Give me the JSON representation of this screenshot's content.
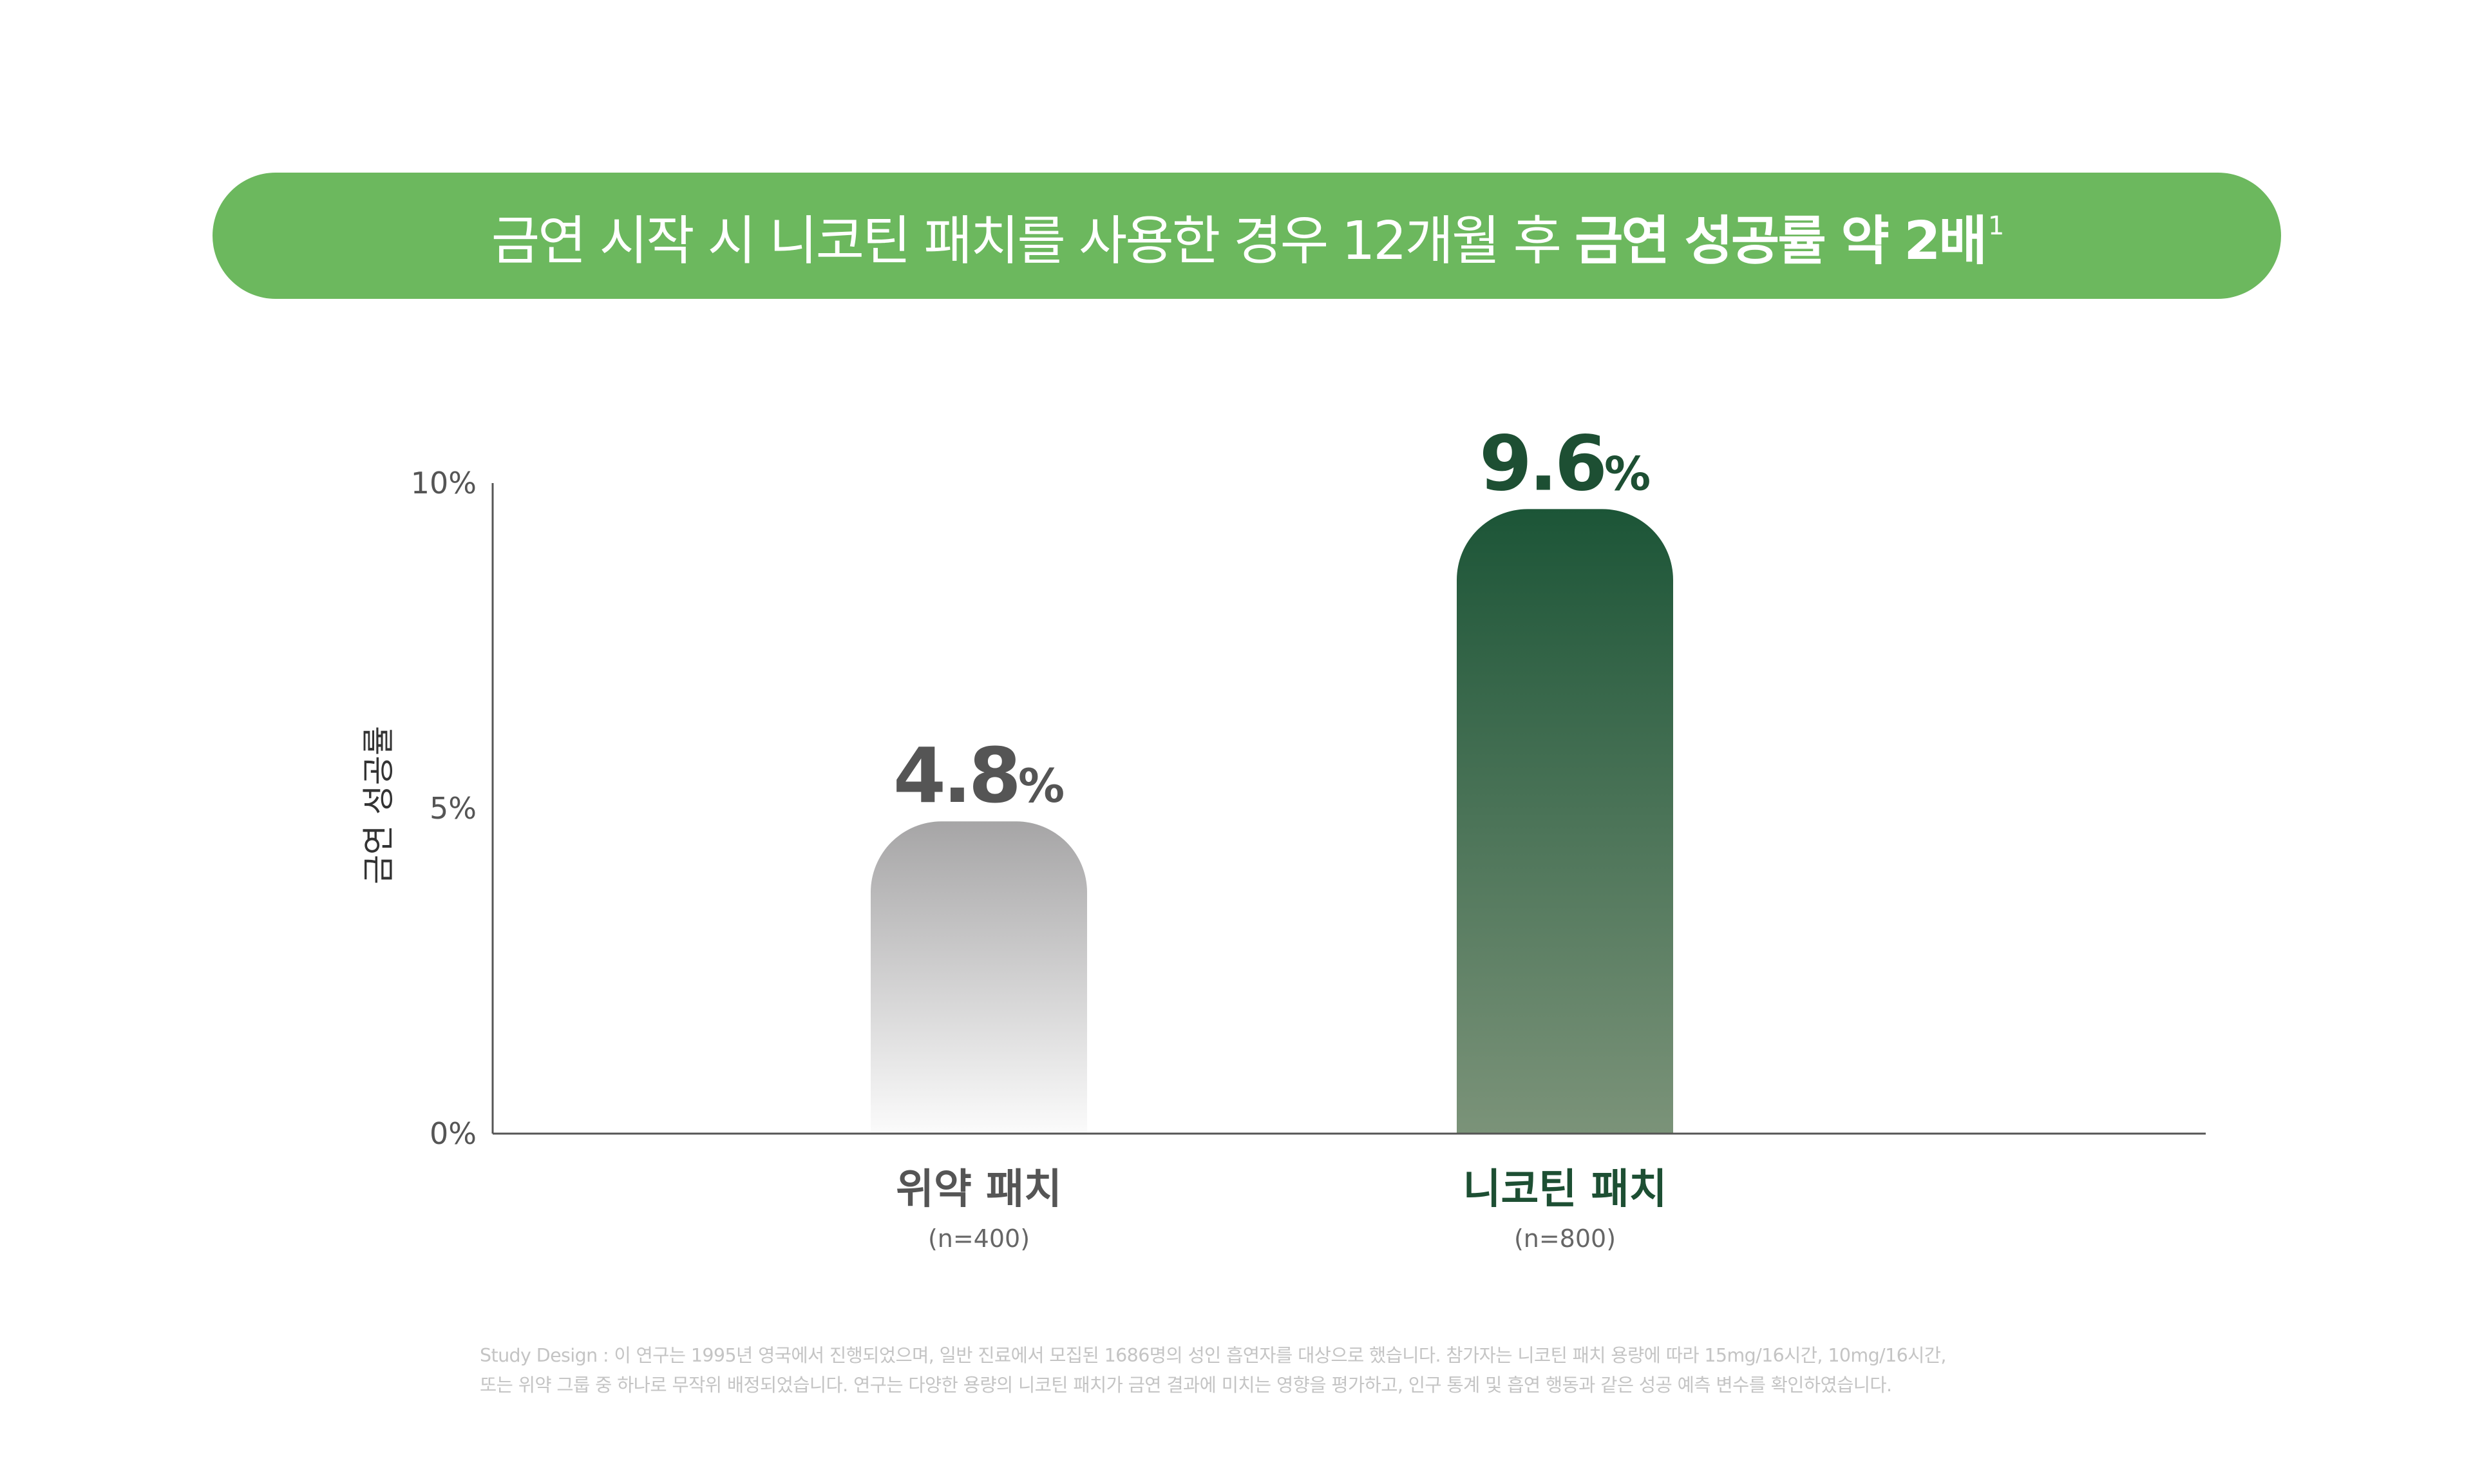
{
  "header": {
    "title_part1": "금연 시작 시 니코틴 패치를 사용한 경우 12개월 후 ",
    "title_part2": "금연 성공률 약 2배",
    "title_sup": "1"
  },
  "colors": {
    "banner": "#6cb85e",
    "placebo_top": "#a6a5a6",
    "placebo_bottom": "#fbfbfb",
    "nicotine_top": "#1c5537",
    "nicotine_bottom": "#7b9379",
    "placebo_label": "#555555",
    "nicotine_label": "#1d4f33"
  },
  "chart_data": {
    "type": "bar",
    "categories": [
      "위약 패치",
      "니코틴 패치"
    ],
    "category_notes": [
      "(n=400)",
      "(n=800)"
    ],
    "values": [
      4.8,
      9.6
    ],
    "value_labels": [
      {
        "number": "4.8",
        "unit": "%"
      },
      {
        "number": "9.6",
        "unit": "%"
      }
    ],
    "ylabel": "금연 성공률",
    "ylim": [
      0,
      10
    ],
    "yticks": [
      {
        "value": 0,
        "label": "0%"
      },
      {
        "value": 5,
        "label": "5%"
      },
      {
        "value": 10,
        "label": "10%"
      }
    ],
    "grid": false
  },
  "footnote": {
    "line1": "Study Design : 이 연구는 1995년 영국에서 진행되었으며, 일반 진료에서 모집된 1686명의 성인 흡연자를 대상으로 했습니다. 참가자는 니코틴 패치 용량에 따라 15mg/16시간, 10mg/16시간,",
    "line2": "또는 위약 그룹 중 하나로 무작위 배정되었습니다. 연구는 다양한 용량의 니코틴 패치가 금연 결과에 미치는 영향을 평가하고, 인구 통계 및 흡연 행동과 같은 성공 예측 변수를 확인하였습니다."
  }
}
